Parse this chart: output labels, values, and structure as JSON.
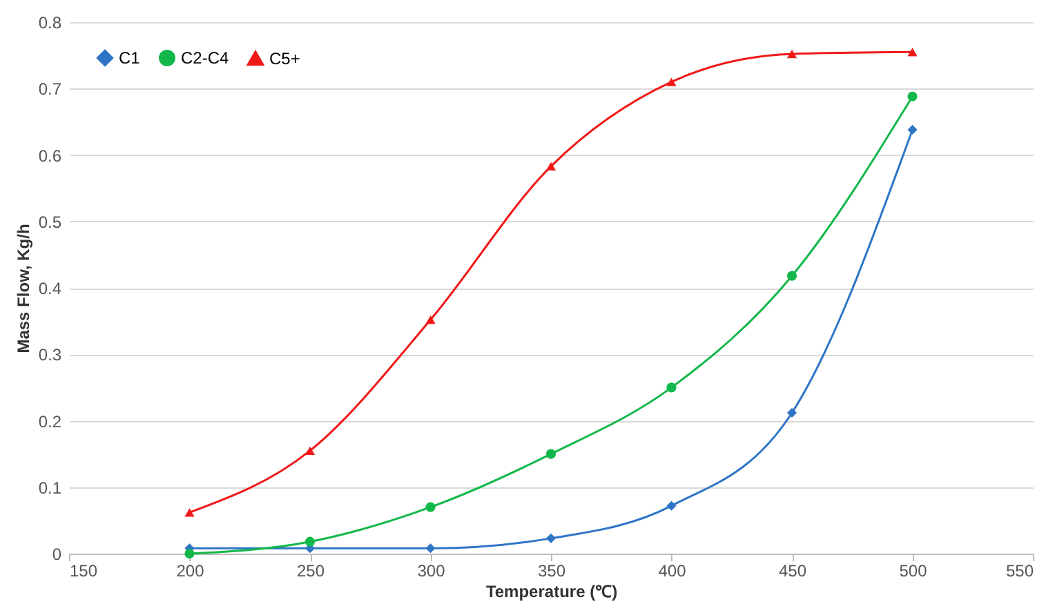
{
  "chart_data": {
    "type": "line",
    "xlabel": "Temperature (℃)",
    "ylabel": "Mass Flow, Kg/h",
    "x": [
      200,
      250,
      300,
      350,
      400,
      450,
      500
    ],
    "series": [
      {
        "name": "C1",
        "color": "#2e75c6",
        "marker": "diamond",
        "values": [
          0.008,
          0.008,
          0.008,
          0.023,
          0.072,
          0.212,
          0.638
        ]
      },
      {
        "name": "C2-C4",
        "color": "#12b84a",
        "marker": "circle",
        "values": [
          0.0,
          0.018,
          0.07,
          0.15,
          0.25,
          0.418,
          0.688
        ]
      },
      {
        "name": "C5+",
        "color": "#f01818",
        "marker": "triangle",
        "values": [
          0.062,
          0.155,
          0.352,
          0.583,
          0.71,
          0.752,
          0.755
        ]
      }
    ],
    "xlim": [
      150,
      550
    ],
    "xticks": [
      150,
      200,
      250,
      300,
      350,
      400,
      450,
      500,
      550
    ],
    "ylim": [
      0,
      0.8
    ],
    "yticks": [
      0,
      0.1,
      0.2,
      0.3,
      0.4,
      0.5,
      0.6,
      0.7,
      0.8
    ],
    "grid": "y",
    "legend": "top left",
    "line_style": "solid"
  }
}
